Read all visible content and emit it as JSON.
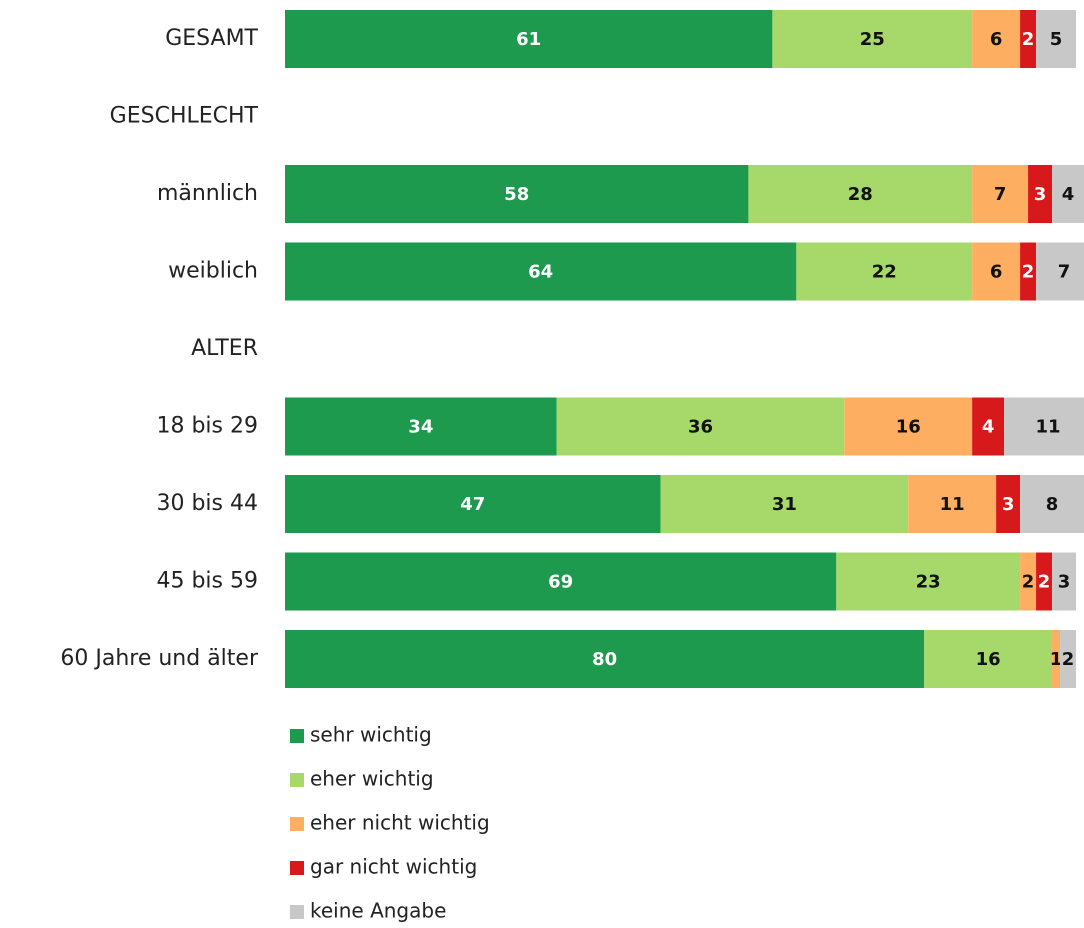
{
  "chart_data": {
    "type": "stacked-bar-horizontal",
    "categories": [
      "GESAMT",
      "GESCHLECHT",
      "männlich",
      "weiblich",
      "ALTER",
      "18 bis 29",
      "30 bis 44",
      "45 bis 59",
      "60 Jahre und älter"
    ],
    "series": [
      {
        "name": "sehr wichtig",
        "color": "#1e9a4f",
        "values": [
          61,
          null,
          58,
          64,
          null,
          34,
          47,
          69,
          80
        ]
      },
      {
        "name": "eher wichtig",
        "color": "#a6d96a",
        "values": [
          25,
          null,
          28,
          22,
          null,
          36,
          31,
          23,
          16
        ]
      },
      {
        "name": "eher nicht wichtig",
        "color": "#fdae61",
        "values": [
          6,
          null,
          7,
          6,
          null,
          16,
          11,
          2,
          1
        ]
      },
      {
        "name": "gar nicht wichtig",
        "color": "#d7191c",
        "values": [
          2,
          null,
          3,
          2,
          null,
          4,
          3,
          2,
          0
        ]
      },
      {
        "name": "keine Angabe",
        "color": "#c8c8c8",
        "values": [
          5,
          null,
          4,
          7,
          null,
          11,
          8,
          3,
          2
        ]
      }
    ],
    "xlim": [
      0,
      100
    ]
  }
}
